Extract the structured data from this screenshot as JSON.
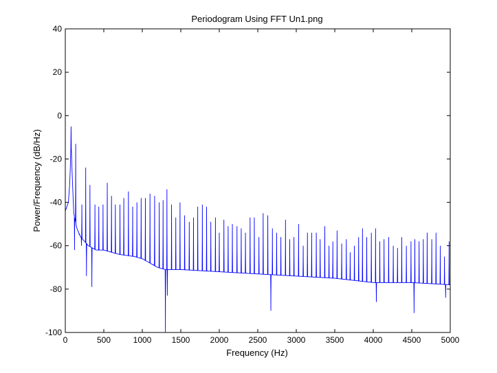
{
  "chart_data": {
    "type": "line",
    "title": "Periodogram Using FFT Un1.png",
    "xlabel": "Frequency (Hz)",
    "ylabel": "Power/Frequency (dB/Hz)",
    "xlim": [
      0,
      5000
    ],
    "ylim": [
      -100,
      40
    ],
    "x_ticks": [
      0,
      500,
      1000,
      1500,
      2000,
      2500,
      3000,
      3500,
      4000,
      4500,
      5000
    ],
    "y_ticks": [
      40,
      20,
      0,
      -20,
      -40,
      -60,
      -80,
      -100
    ],
    "grid": false,
    "series_color": "#0000ff",
    "baseline": [
      [
        0,
        -44
      ],
      [
        40,
        -40
      ],
      [
        60,
        -30
      ],
      [
        75,
        -12
      ],
      [
        90,
        -28
      ],
      [
        110,
        -45
      ],
      [
        150,
        -52
      ],
      [
        200,
        -56
      ],
      [
        300,
        -60
      ],
      [
        400,
        -62
      ],
      [
        500,
        -62
      ],
      [
        700,
        -64
      ],
      [
        900,
        -65
      ],
      [
        1000,
        -66
      ],
      [
        1100,
        -68
      ],
      [
        1200,
        -70
      ],
      [
        1300,
        -71
      ],
      [
        1500,
        -71
      ],
      [
        2000,
        -72
      ],
      [
        2500,
        -73
      ],
      [
        3000,
        -74
      ],
      [
        3500,
        -75
      ],
      [
        4000,
        -77
      ],
      [
        4500,
        -77
      ],
      [
        5000,
        -78
      ]
    ],
    "peaks": [
      [
        75,
        -5
      ],
      [
        135,
        -13
      ],
      [
        180,
        -55
      ],
      [
        215,
        -41
      ],
      [
        265,
        -24
      ],
      [
        320,
        -32
      ],
      [
        385,
        -41
      ],
      [
        435,
        -42
      ],
      [
        490,
        -41
      ],
      [
        545,
        -31
      ],
      [
        600,
        -37
      ],
      [
        650,
        -41
      ],
      [
        710,
        -41
      ],
      [
        760,
        -38
      ],
      [
        820,
        -35
      ],
      [
        875,
        -42
      ],
      [
        930,
        -40
      ],
      [
        985,
        -38
      ],
      [
        1040,
        -38
      ],
      [
        1100,
        -36
      ],
      [
        1160,
        -37
      ],
      [
        1220,
        -40
      ],
      [
        1270,
        -39
      ],
      [
        1320,
        -34
      ],
      [
        1380,
        -41
      ],
      [
        1435,
        -47
      ],
      [
        1490,
        -40
      ],
      [
        1550,
        -46
      ],
      [
        1610,
        -49
      ],
      [
        1665,
        -47
      ],
      [
        1720,
        -42
      ],
      [
        1780,
        -41
      ],
      [
        1835,
        -42
      ],
      [
        1890,
        -49
      ],
      [
        1950,
        -47
      ],
      [
        2000,
        -54
      ],
      [
        2060,
        -48
      ],
      [
        2115,
        -51
      ],
      [
        2170,
        -50
      ],
      [
        2230,
        -51
      ],
      [
        2285,
        -52
      ],
      [
        2340,
        -54
      ],
      [
        2400,
        -47
      ],
      [
        2455,
        -47
      ],
      [
        2515,
        -56
      ],
      [
        2570,
        -45
      ],
      [
        2630,
        -46
      ],
      [
        2690,
        -52
      ],
      [
        2745,
        -54
      ],
      [
        2800,
        -56
      ],
      [
        2860,
        -48
      ],
      [
        2915,
        -57
      ],
      [
        2970,
        -56
      ],
      [
        3030,
        -50
      ],
      [
        3090,
        -60
      ],
      [
        3145,
        -54
      ],
      [
        3200,
        -54
      ],
      [
        3260,
        -54
      ],
      [
        3310,
        -57
      ],
      [
        3370,
        -51
      ],
      [
        3425,
        -60
      ],
      [
        3475,
        -58
      ],
      [
        3530,
        -53
      ],
      [
        3590,
        -59
      ],
      [
        3650,
        -57
      ],
      [
        3700,
        -63
      ],
      [
        3755,
        -60
      ],
      [
        3810,
        -56
      ],
      [
        3860,
        -52
      ],
      [
        3915,
        -56
      ],
      [
        3975,
        -54
      ],
      [
        4030,
        -52
      ],
      [
        4085,
        -58
      ],
      [
        4140,
        -57
      ],
      [
        4200,
        -56
      ],
      [
        4260,
        -60
      ],
      [
        4315,
        -61
      ],
      [
        4370,
        -56
      ],
      [
        4430,
        -60
      ],
      [
        4490,
        -58
      ],
      [
        4540,
        -57
      ],
      [
        4595,
        -58
      ],
      [
        4650,
        -57
      ],
      [
        4700,
        -54
      ],
      [
        4760,
        -57
      ],
      [
        4815,
        -54
      ],
      [
        4870,
        -60
      ],
      [
        4925,
        -65
      ],
      [
        4985,
        -58
      ]
    ],
    "dips": [
      [
        120,
        -62
      ],
      [
        210,
        -60
      ],
      [
        275,
        -74
      ],
      [
        345,
        -79
      ],
      [
        1300,
        -100
      ],
      [
        1325,
        -83
      ],
      [
        2670,
        -90
      ],
      [
        4040,
        -86
      ],
      [
        4530,
        -91
      ],
      [
        4940,
        -84
      ]
    ]
  }
}
